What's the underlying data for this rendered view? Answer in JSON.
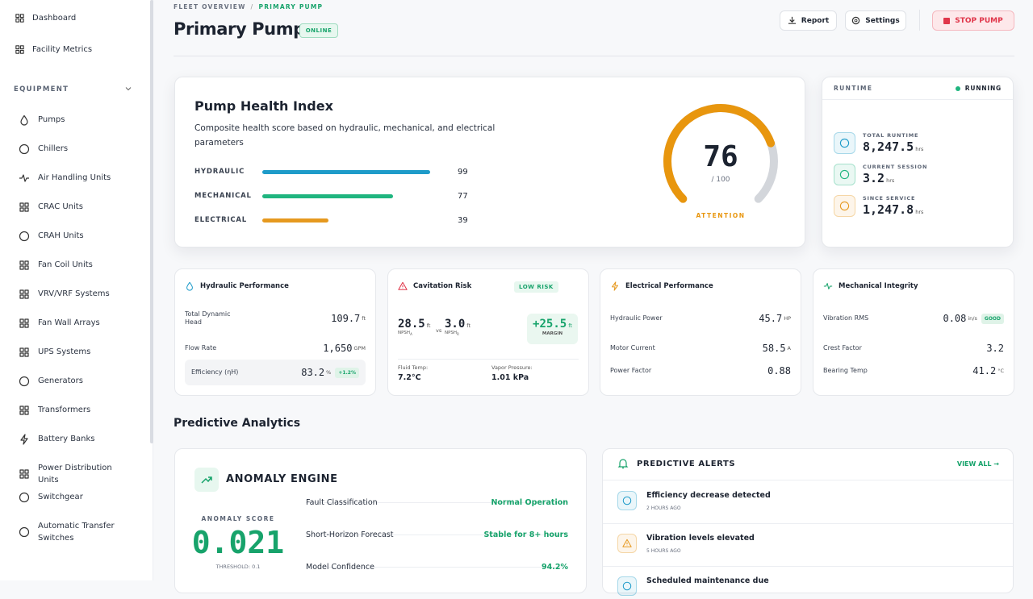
{
  "sidebar": {
    "top": [
      "Dashboard",
      "Facility Metrics"
    ],
    "section": "EQUIPMENT",
    "equipment": [
      "Pumps",
      "Chillers",
      "Air Handling Units",
      "CRAC Units",
      "CRAH Units",
      "Fan Coil Units",
      "VRV/VRF Systems",
      "Fan Wall Arrays",
      "UPS Systems",
      "Generators",
      "Transformers",
      "Battery Banks",
      "Power Distribution Units",
      "Switchgear",
      "Automatic Transfer Switches"
    ]
  },
  "header": {
    "breadcrumb": [
      "FLEET OVERVIEW",
      "PRIMARY PUMP"
    ],
    "separator": "/",
    "title": "Primary Pump",
    "status": "ONLINE",
    "buttons": [
      "Report",
      "Settings"
    ],
    "stop": "STOP PUMP"
  },
  "health": {
    "title": "Pump Health Index",
    "description": "Composite health score based on hydraulic, mechanical, and electrical parameters",
    "bars": [
      {
        "label": "HYDRAULIC",
        "value": 99,
        "color": "#1e9bc9"
      },
      {
        "label": "MECHANICAL",
        "value": 77,
        "color": "#1fb57f"
      },
      {
        "label": "ELECTRICAL",
        "value": 39,
        "color": "#e6991f"
      }
    ],
    "gauge": {
      "score": 76,
      "max": {
        "value": 100,
        "label": "/ 100"
      },
      "status": "ATTENTION",
      "color": "#e8960e"
    }
  },
  "runtime": {
    "title": "RUNTIME",
    "status": "RUNNING",
    "items": [
      {
        "label": "TOTAL RUNTIME",
        "value": "8,247.5",
        "unit": "hrs",
        "color": "#1e9bc9"
      },
      {
        "label": "CURRENT SESSION",
        "value": "3.2",
        "unit": "hrs",
        "color": "#1fb57f"
      },
      {
        "label": "SINCE SERVICE",
        "value": "1,247.8",
        "unit": "hrs",
        "color": "#e6991f"
      }
    ]
  },
  "cards": {
    "hydraulic": {
      "title": "Hydraulic Performance",
      "rows": [
        {
          "label": "Total Dynamic Head",
          "value": "109.7",
          "unit": "ft"
        },
        {
          "label": "Flow Rate",
          "value": "1,650",
          "unit": "GPM"
        },
        {
          "label": "Efficiency (ηH)",
          "value": "83.2",
          "unit": "%",
          "badge": "+1.2%"
        }
      ]
    },
    "cavitation": {
      "title": "Cavitation Risk",
      "badge": "LOW RISK",
      "available": {
        "value": "28.5",
        "unit": "ft",
        "label": "NPSH",
        "sub": "A"
      },
      "vs": "vs",
      "required": {
        "value": "3.0",
        "unit": "ft",
        "label": "NPSH",
        "sub": "R"
      },
      "margin": {
        "value": "+25.5",
        "unit": "ft",
        "label": "MARGIN"
      },
      "footer": [
        {
          "label": "Fluid Temp:",
          "value": "7.2°C"
        },
        {
          "label": "Vapor Pressure:",
          "value": "1.01 kPa"
        }
      ]
    },
    "electrical": {
      "title": "Electrical Performance",
      "rows": [
        {
          "label": "Hydraulic Power",
          "value": "45.7",
          "unit": "HP"
        },
        {
          "label": "Motor Current",
          "value": "58.5",
          "unit": "A"
        },
        {
          "label": "Power Factor",
          "value": "0.88"
        }
      ]
    },
    "mechanical": {
      "title": "Mechanical Integrity",
      "rows": [
        {
          "label": "Vibration RMS",
          "value": "0.08",
          "unit": "in/s",
          "badge": "GOOD"
        },
        {
          "label": "Crest Factor",
          "value": "3.2"
        },
        {
          "label": "Bearing Temp",
          "value": "41.2",
          "unit": "°C"
        }
      ]
    }
  },
  "analytics": {
    "title": "Predictive Analytics",
    "anomaly": {
      "title": "ANOMALY ENGINE",
      "score_label": "ANOMALY SCORE",
      "score": "0.021",
      "threshold": "THRESHOLD: 0.1",
      "rows": [
        {
          "label": "Fault Classification",
          "value": "Normal Operation"
        },
        {
          "label": "Short-Horizon Forecast",
          "value": "Stable for 8+ hours"
        },
        {
          "label": "Model Confidence",
          "value": "94.2%"
        }
      ]
    },
    "alerts": {
      "title": "PREDICTIVE ALERTS",
      "view_all": "VIEW ALL →",
      "items": [
        {
          "title": "Efficiency decrease detected",
          "time": "2 HOURS AGO",
          "tone": "info"
        },
        {
          "title": "Vibration levels elevated",
          "time": "5 HOURS AGO",
          "tone": "warn"
        },
        {
          "title": "Scheduled maintenance due",
          "time": "",
          "tone": "info"
        }
      ]
    }
  }
}
